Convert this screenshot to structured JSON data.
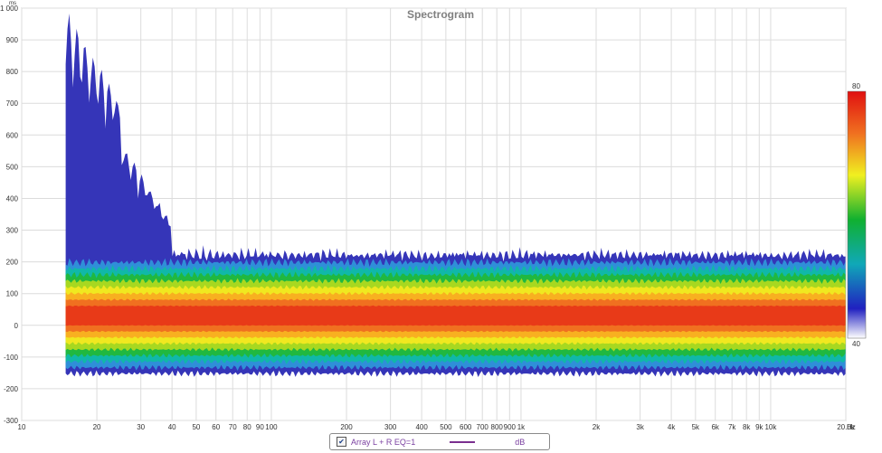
{
  "chart_data": {
    "type": "heatmap",
    "title": "Spectrogram",
    "x_scale": "log",
    "x_unit": "Hz",
    "y_unit": "ms",
    "x_range": [
      10,
      20000
    ],
    "y_range": [
      -300,
      1000
    ],
    "x_ticks": [
      {
        "value": 10,
        "label": "10"
      },
      {
        "value": 20,
        "label": "20"
      },
      {
        "value": 30,
        "label": "30"
      },
      {
        "value": 40,
        "label": "40"
      },
      {
        "value": 50,
        "label": "50"
      },
      {
        "value": 60,
        "label": "60"
      },
      {
        "value": 70,
        "label": "70"
      },
      {
        "value": 80,
        "label": "80"
      },
      {
        "value": 90,
        "label": "90"
      },
      {
        "value": 100,
        "label": "100"
      },
      {
        "value": 200,
        "label": "200"
      },
      {
        "value": 300,
        "label": "300"
      },
      {
        "value": 400,
        "label": "400"
      },
      {
        "value": 500,
        "label": "500"
      },
      {
        "value": 600,
        "label": "600"
      },
      {
        "value": 700,
        "label": "700"
      },
      {
        "value": 800,
        "label": "800"
      },
      {
        "value": 900,
        "label": "900"
      },
      {
        "value": 1000,
        "label": "1k"
      },
      {
        "value": 2000,
        "label": "2k"
      },
      {
        "value": 3000,
        "label": "3k"
      },
      {
        "value": 4000,
        "label": "4k"
      },
      {
        "value": 5000,
        "label": "5k"
      },
      {
        "value": 6000,
        "label": "6k"
      },
      {
        "value": 7000,
        "label": "7k"
      },
      {
        "value": 8000,
        "label": "8k"
      },
      {
        "value": 9000,
        "label": "9k"
      },
      {
        "value": 10000,
        "label": "10k"
      },
      {
        "value": 20000,
        "label": "20.0k"
      }
    ],
    "y_ticks": [
      {
        "value": 1000,
        "label": "1 000"
      },
      {
        "value": 900,
        "label": "900"
      },
      {
        "value": 800,
        "label": "800"
      },
      {
        "value": 700,
        "label": "700"
      },
      {
        "value": 600,
        "label": "600"
      },
      {
        "value": 500,
        "label": "500"
      },
      {
        "value": 400,
        "label": "400"
      },
      {
        "value": 300,
        "label": "300"
      },
      {
        "value": 200,
        "label": "200"
      },
      {
        "value": 100,
        "label": "100"
      },
      {
        "value": 0,
        "label": "0"
      },
      {
        "value": -100,
        "label": "-100"
      },
      {
        "value": -200,
        "label": "-200"
      },
      {
        "value": -300,
        "label": "-300"
      }
    ],
    "data_x_range": [
      15,
      20000
    ],
    "energy_center_ms": 30,
    "colorbar": {
      "min": 40,
      "max": 80,
      "min_label": "40",
      "max_label": "80"
    },
    "grid": true,
    "legend": {
      "position": "bottom-center",
      "checked": true,
      "series_name": "Array L + R EQ=1",
      "series_color": "#7a2f8f",
      "unit_label": "dB"
    }
  }
}
